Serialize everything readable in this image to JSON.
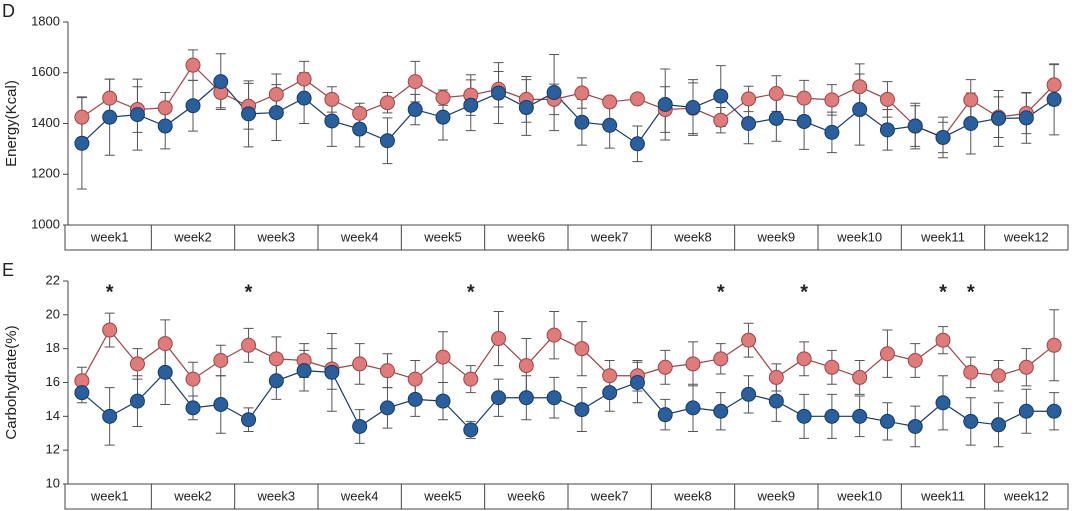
{
  "chart_data": [
    {
      "type": "line",
      "title": "D",
      "ylabel": "Energy(Kcal)",
      "categories": [
        null,
        "week1",
        null,
        null,
        "week2",
        null,
        null,
        "week3",
        null,
        null,
        "week4",
        null,
        null,
        "week5",
        null,
        null,
        "week6",
        null,
        null,
        "week7",
        null,
        null,
        "week8",
        null,
        null,
        "week9",
        null,
        null,
        "week10",
        null,
        null,
        "week11",
        null,
        null,
        "week12",
        null
      ],
      "ylim": [
        1000,
        1800
      ],
      "yticks": [
        1000,
        1200,
        1400,
        1600,
        1800
      ],
      "series": [
        {
          "color": "#e07b7b",
          "values": [
            1425,
            1500,
            1455,
            1462,
            1630,
            1522,
            1468,
            1515,
            1575,
            1495,
            1440,
            1482,
            1565,
            1502,
            1512,
            1535,
            1495,
            1495,
            1520,
            1485,
            1497,
            1455,
            1460,
            1413,
            1497,
            1518,
            1500,
            1493,
            1545,
            1495,
            1390,
            1345,
            1493,
            1425,
            1440,
            1552
          ],
          "errors": [
            80,
            75,
            90,
            60,
            60,
            60,
            90,
            80,
            70,
            50,
            40,
            40,
            80,
            30,
            80,
            70,
            90,
            60,
            60,
            20,
            20,
            90,
            100,
            50,
            50,
            70,
            70,
            60,
            90,
            70,
            80,
            60,
            80,
            80,
            80,
            80
          ]
        },
        {
          "color": "#2a5f9e",
          "values": [
            1322,
            1425,
            1435,
            1390,
            1470,
            1565,
            1438,
            1443,
            1500,
            1410,
            1378,
            1332,
            1455,
            1425,
            1472,
            1520,
            1463,
            1522,
            1405,
            1393,
            1320,
            1475,
            1463,
            1508,
            1400,
            1420,
            1408,
            1365,
            1455,
            1375,
            1390,
            1345,
            1400,
            1420,
            1422,
            1495
          ],
          "errors": [
            180,
            150,
            140,
            90,
            100,
            110,
            130,
            110,
            100,
            100,
            70,
            90,
            60,
            90,
            100,
            120,
            110,
            150,
            90,
            90,
            70,
            140,
            110,
            120,
            80,
            90,
            110,
            80,
            140,
            80,
            90,
            80,
            120,
            110,
            100,
            140
          ]
        }
      ]
    },
    {
      "type": "line",
      "title": "E",
      "ylabel": "Carbohydrate(%)",
      "categories": [
        null,
        "week1",
        null,
        null,
        "week2",
        null,
        null,
        "week3",
        null,
        null,
        "week4",
        null,
        null,
        "week5",
        null,
        null,
        "week6",
        null,
        null,
        "week7",
        null,
        null,
        "week8",
        null,
        null,
        "week9",
        null,
        null,
        "week10",
        null,
        null,
        "week11",
        null,
        null,
        "week12",
        null
      ],
      "ylim": [
        10,
        22
      ],
      "yticks": [
        10,
        12,
        14,
        16,
        18,
        20,
        22
      ],
      "annotations": [
        {
          "text": "*",
          "index": 1
        },
        {
          "text": "*",
          "index": 6
        },
        {
          "text": "*",
          "index": 14
        },
        {
          "text": "*",
          "index": 23
        },
        {
          "text": "*",
          "index": 26
        },
        {
          "text": "*",
          "index": 31
        },
        {
          "text": "*",
          "index": 32
        }
      ],
      "series": [
        {
          "color": "#e07b7b",
          "values": [
            16.1,
            19.1,
            17.1,
            18.3,
            16.2,
            17.3,
            18.2,
            17.4,
            17.3,
            16.8,
            17.1,
            16.7,
            16.2,
            17.5,
            16.2,
            18.6,
            17.0,
            18.8,
            18.0,
            16.4,
            16.4,
            16.9,
            17.1,
            17.4,
            18.5,
            16.3,
            17.4,
            16.9,
            16.3,
            17.7,
            17.3,
            18.5,
            16.6,
            16.4,
            16.9,
            18.2
          ],
          "errors": [
            0.8,
            1.0,
            0.9,
            1.4,
            1.0,
            0.9,
            1.0,
            1.3,
            1.0,
            1.2,
            1.2,
            1.0,
            1.1,
            1.5,
            0.8,
            1.6,
            1.6,
            1.4,
            1.6,
            0.9,
            0.9,
            1.0,
            1.3,
            0.9,
            1.0,
            0.8,
            1.0,
            1.0,
            1.0,
            1.4,
            1.0,
            0.8,
            0.9,
            0.9,
            1.1,
            2.1
          ]
        },
        {
          "color": "#2a5f9e",
          "values": [
            15.4,
            14.0,
            14.9,
            16.6,
            14.5,
            14.7,
            13.8,
            16.1,
            16.7,
            16.6,
            13.4,
            14.5,
            15.0,
            14.9,
            13.2,
            15.1,
            15.1,
            15.1,
            14.4,
            15.4,
            16.0,
            14.1,
            14.5,
            14.3,
            15.3,
            14.9,
            14.0,
            14.0,
            14.0,
            13.7,
            13.4,
            14.8,
            13.7,
            13.5,
            14.3,
            14.3
          ],
          "errors": [
            0.6,
            1.7,
            1.5,
            1.9,
            0.7,
            1.7,
            0.7,
            1.1,
            1.2,
            2.3,
            1.0,
            1.2,
            1.0,
            1.1,
            0.5,
            1.1,
            1.3,
            1.2,
            1.3,
            1.1,
            1.2,
            0.9,
            1.4,
            1.1,
            1.1,
            1.2,
            1.3,
            1.3,
            1.2,
            1.1,
            1.2,
            1.6,
            1.4,
            1.3,
            1.3,
            1.1
          ]
        }
      ]
    }
  ]
}
